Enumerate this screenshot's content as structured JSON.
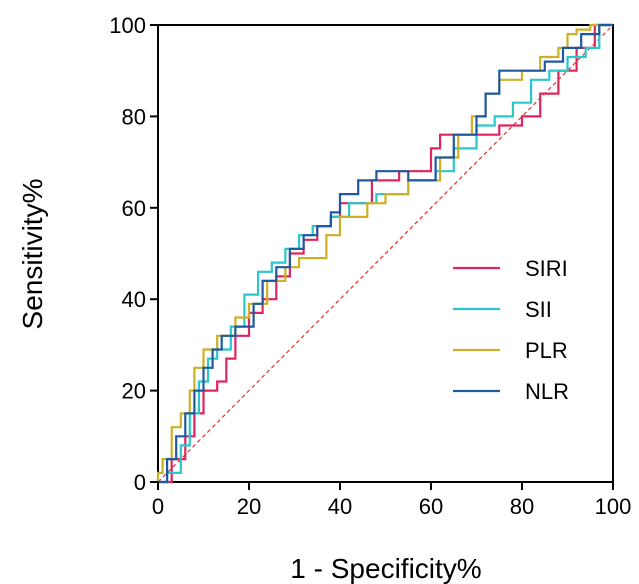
{
  "chart_data": {
    "type": "line",
    "title": "",
    "xlabel": "1 - Specificity%",
    "ylabel": "Sensitivity%",
    "xlim": [
      0,
      100
    ],
    "ylim": [
      0,
      100
    ],
    "x_ticks": [
      0,
      20,
      40,
      60,
      80,
      100
    ],
    "y_ticks": [
      0,
      20,
      40,
      60,
      80,
      100
    ],
    "grid": false,
    "legend_position": "right",
    "reference_line": {
      "x": [
        0,
        100
      ],
      "y": [
        0,
        100
      ],
      "color": "#e8302a",
      "style": "dashed"
    },
    "series": [
      {
        "name": "SIRI",
        "color": "#e0245e",
        "x": [
          0,
          1,
          3,
          3,
          6,
          6,
          8,
          8,
          10,
          10,
          13,
          13,
          15,
          15,
          17,
          17,
          20,
          20,
          23,
          23,
          26,
          26,
          29,
          29,
          32,
          32,
          35,
          35,
          38,
          38,
          40,
          40,
          47,
          47,
          53,
          53,
          60,
          60,
          62,
          62,
          75,
          75,
          80,
          80,
          84,
          84,
          88,
          88,
          92,
          92,
          96,
          96,
          100
        ],
        "y": [
          0,
          0,
          0,
          5,
          5,
          10,
          10,
          15,
          15,
          20,
          20,
          22,
          22,
          27,
          27,
          32,
          32,
          37,
          37,
          40,
          40,
          45,
          45,
          50,
          50,
          53,
          53,
          56,
          56,
          58,
          58,
          61,
          61,
          66,
          66,
          68,
          68,
          73,
          73,
          76,
          76,
          78,
          78,
          80,
          80,
          85,
          85,
          90,
          90,
          95,
          95,
          100,
          100
        ]
      },
      {
        "name": "SII",
        "color": "#29c6cc",
        "x": [
          0,
          2,
          2,
          5,
          5,
          7,
          7,
          9,
          9,
          11,
          11,
          13,
          13,
          16,
          16,
          19,
          19,
          22,
          22,
          25,
          25,
          28,
          28,
          31,
          31,
          34,
          34,
          38,
          38,
          42,
          42,
          48,
          48,
          55,
          55,
          61,
          61,
          65,
          65,
          70,
          70,
          74,
          74,
          78,
          78,
          82,
          82,
          86,
          86,
          90,
          90,
          94,
          94,
          97,
          97,
          100
        ],
        "y": [
          0,
          0,
          2,
          2,
          8,
          8,
          15,
          15,
          22,
          22,
          27,
          27,
          29,
          29,
          34,
          34,
          41,
          41,
          46,
          46,
          48,
          48,
          51,
          51,
          54,
          54,
          56,
          56,
          58,
          58,
          61,
          61,
          63,
          63,
          66,
          66,
          68,
          68,
          73,
          73,
          78,
          78,
          80,
          80,
          83,
          83,
          88,
          88,
          90,
          90,
          93,
          93,
          95,
          95,
          100,
          100
        ]
      },
      {
        "name": "PLR",
        "color": "#cdb026",
        "x": [
          0,
          0,
          1,
          1,
          3,
          3,
          5,
          5,
          7,
          7,
          8,
          8,
          10,
          10,
          13,
          13,
          17,
          17,
          20,
          20,
          24,
          24,
          28,
          28,
          31,
          31,
          37,
          37,
          40,
          40,
          46,
          46,
          50,
          50,
          55,
          55,
          62,
          62,
          66,
          66,
          69,
          69,
          72,
          72,
          75,
          75,
          80,
          80,
          84,
          84,
          88,
          88,
          90,
          90,
          92,
          92,
          95,
          95,
          100
        ],
        "y": [
          0,
          2,
          2,
          5,
          5,
          12,
          12,
          15,
          15,
          20,
          20,
          25,
          25,
          29,
          29,
          32,
          32,
          36,
          36,
          39,
          39,
          44,
          44,
          47,
          47,
          49,
          49,
          54,
          54,
          58,
          58,
          61,
          61,
          63,
          63,
          66,
          66,
          71,
          71,
          76,
          76,
          80,
          80,
          85,
          85,
          88,
          88,
          90,
          90,
          93,
          93,
          95,
          95,
          98,
          98,
          99,
          99,
          100,
          100
        ]
      },
      {
        "name": "NLR",
        "color": "#1f5aa0",
        "x": [
          0,
          2,
          2,
          4,
          4,
          6,
          6,
          8,
          8,
          10,
          10,
          12,
          12,
          14,
          14,
          17,
          17,
          21,
          21,
          23,
          23,
          26,
          26,
          29,
          29,
          32,
          32,
          35,
          35,
          38,
          38,
          40,
          40,
          44,
          44,
          48,
          48,
          55,
          55,
          61,
          61,
          65,
          65,
          70,
          70,
          72,
          72,
          75,
          75,
          85,
          85,
          89,
          89,
          93,
          93,
          97,
          97,
          100
        ],
        "y": [
          0,
          0,
          5,
          5,
          10,
          10,
          15,
          15,
          20,
          20,
          25,
          25,
          29,
          29,
          32,
          32,
          34,
          34,
          39,
          39,
          44,
          44,
          47,
          47,
          51,
          51,
          54,
          54,
          56,
          56,
          59,
          59,
          63,
          63,
          66,
          66,
          68,
          68,
          66,
          66,
          71,
          71,
          76,
          76,
          80,
          80,
          85,
          85,
          90,
          90,
          92,
          92,
          95,
          95,
          98,
          98,
          100,
          100
        ]
      }
    ]
  }
}
